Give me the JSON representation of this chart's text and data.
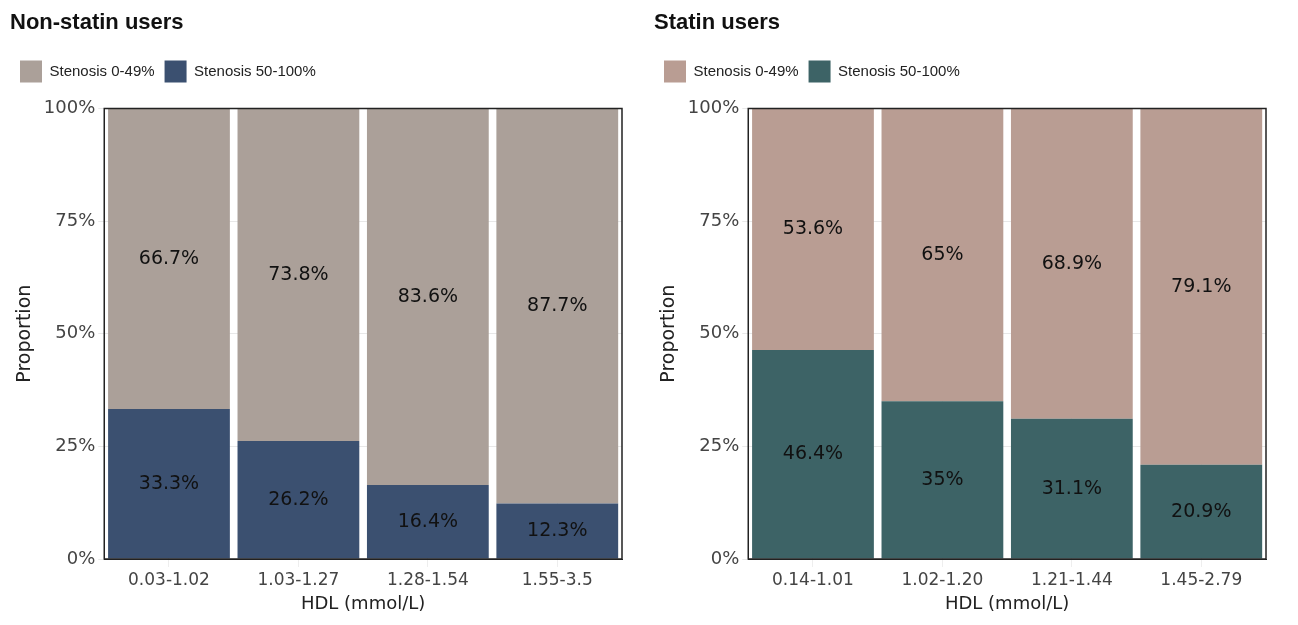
{
  "chart_data": [
    {
      "type": "bar",
      "title": "Non-statin users",
      "xlabel": "HDL (mmol/L)",
      "ylabel": "Proportion",
      "stacked": true,
      "categories": [
        "0.03-1.02",
        "1.03-1.27",
        "1.28-1.54",
        "1.55-3.5"
      ],
      "ylim": [
        0,
        100
      ],
      "yticks": [
        {
          "value": 0,
          "label": "0%"
        },
        {
          "value": 25,
          "label": "25%"
        },
        {
          "value": 50,
          "label": "50%"
        },
        {
          "value": 75,
          "label": "75%"
        },
        {
          "value": 100,
          "label": "100%"
        }
      ],
      "grid": true,
      "legend": "top left",
      "series": [
        {
          "name": "Stenosis 50-100%",
          "color": "#3b5070",
          "values": [
            33.3,
            26.2,
            16.4,
            12.3
          ],
          "value_labels": [
            "33.3%",
            "26.2%",
            "16.4%",
            "12.3%"
          ]
        },
        {
          "name": "Stenosis 0-49%",
          "color": "#aba099",
          "values": [
            66.7,
            73.8,
            83.6,
            87.7
          ],
          "value_labels": [
            "66.7%",
            "73.8%",
            "83.6%",
            "87.7%"
          ]
        }
      ]
    },
    {
      "type": "bar",
      "title": "Statin users",
      "xlabel": "HDL (mmol/L)",
      "ylabel": "Proportion",
      "stacked": true,
      "categories": [
        "0.14-1.01",
        "1.02-1.20",
        "1.21-1.44",
        "1.45-2.79"
      ],
      "ylim": [
        0,
        100
      ],
      "yticks": [
        {
          "value": 0,
          "label": "0%"
        },
        {
          "value": 25,
          "label": "25%"
        },
        {
          "value": 50,
          "label": "50%"
        },
        {
          "value": 75,
          "label": "75%"
        },
        {
          "value": 100,
          "label": "100%"
        }
      ],
      "grid": true,
      "legend": "top left",
      "series": [
        {
          "name": "Stenosis 50-100%",
          "color": "#3d6366",
          "values": [
            46.4,
            35,
            31.1,
            20.9
          ],
          "value_labels": [
            "46.4%",
            "35%",
            "31.1%",
            "20.9%"
          ]
        },
        {
          "name": "Stenosis 0-49%",
          "color": "#b99d93",
          "values": [
            53.6,
            65,
            68.9,
            79.1
          ],
          "value_labels": [
            "53.6%",
            "65%",
            "68.9%",
            "79.1%"
          ]
        }
      ]
    }
  ]
}
